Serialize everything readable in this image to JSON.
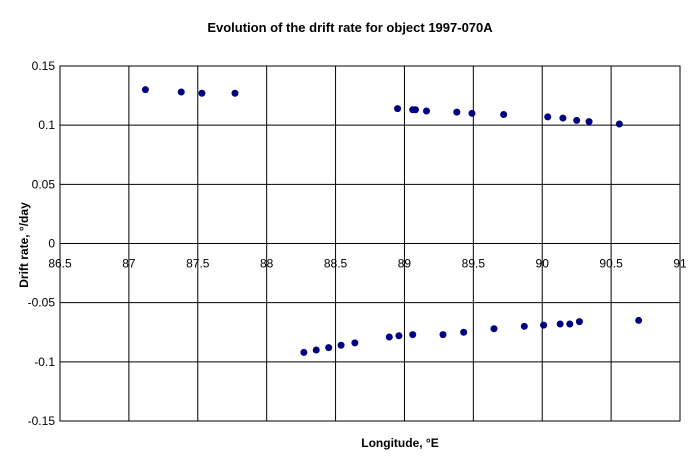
{
  "chart_data": {
    "type": "scatter",
    "title": "Evolution of the drift rate for object 1997-070A",
    "xlabel": "Longitude, °E",
    "ylabel": "Drift rate, °/day",
    "xlim": [
      86.5,
      91
    ],
    "ylim": [
      -0.15,
      0.15
    ],
    "x_ticks": [
      86.5,
      87,
      87.5,
      88,
      88.5,
      89,
      89.5,
      90,
      90.5,
      91
    ],
    "x_tick_labels": [
      "86.5",
      "87",
      "87.5",
      "88",
      "88.5",
      "89",
      "89.5",
      "90",
      "90.5",
      "91"
    ],
    "y_ticks": [
      0.15,
      0.1,
      0.05,
      0,
      -0.05,
      -0.1,
      -0.15
    ],
    "y_tick_labels": [
      "0.15",
      "0.1",
      "0.05",
      "0",
      "-0.05",
      "-0.1",
      "-0.15"
    ],
    "grid": true,
    "marker_color": "#000080",
    "series": [
      {
        "x": [
          87.12,
          87.38,
          87.53,
          87.77,
          88.95,
          89.06,
          89.08,
          89.16,
          89.38,
          89.49,
          89.72,
          90.04,
          90.15,
          90.25,
          90.34,
          90.56,
          88.27,
          88.36,
          88.45,
          88.54,
          88.64,
          88.89,
          88.96,
          89.06,
          89.28,
          89.43,
          89.65,
          89.87,
          90.01,
          90.13,
          90.2,
          90.27,
          90.7
        ],
        "y": [
          0.13,
          0.128,
          0.127,
          0.127,
          0.114,
          0.113,
          0.113,
          0.112,
          0.111,
          0.11,
          0.109,
          0.107,
          0.106,
          0.104,
          0.103,
          0.101,
          -0.092,
          -0.09,
          -0.088,
          -0.086,
          -0.084,
          -0.079,
          -0.078,
          -0.077,
          -0.077,
          -0.075,
          -0.072,
          -0.07,
          -0.069,
          -0.068,
          -0.068,
          -0.066,
          -0.065
        ]
      }
    ]
  }
}
